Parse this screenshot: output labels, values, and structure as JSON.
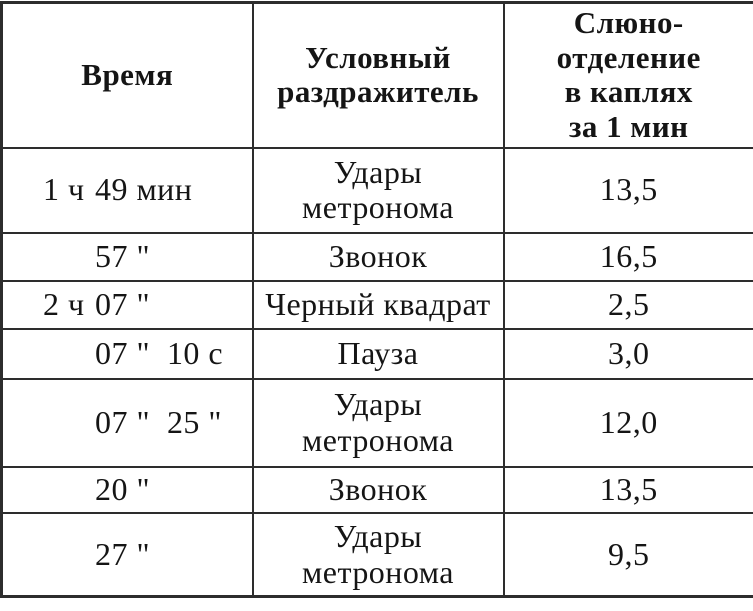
{
  "table": {
    "headers": [
      {
        "label": "Время"
      },
      {
        "label": "Условный\nраздражитель"
      },
      {
        "label": "Слюно-\nотделение\nв каплях\nза 1 мин"
      }
    ],
    "rows": [
      {
        "time_hour": "1 ч",
        "time_rest": "49 мин",
        "stimulus": "Удары\nметронома",
        "drops": "13,5"
      },
      {
        "time_hour": "",
        "time_rest": "57 \"",
        "stimulus": "Звонок",
        "drops": "16,5"
      },
      {
        "time_hour": "2 ч",
        "time_rest": "07 \"",
        "stimulus": "Черный квадрат",
        "drops": "2,5"
      },
      {
        "time_hour": "",
        "time_rest": "07 \"  10 с",
        "stimulus": "Пауза",
        "drops": "3,0"
      },
      {
        "time_hour": "",
        "time_rest": "07 \"  25 \"",
        "stimulus": "Удары\nметронома",
        "drops": "12,0"
      },
      {
        "time_hour": "",
        "time_rest": "20 \"",
        "stimulus": "Звонок",
        "drops": "13,5"
      },
      {
        "time_hour": "",
        "time_rest": "27 \"",
        "stimulus": "Удары\nметронома",
        "drops": "9,5"
      }
    ],
    "colors": {
      "border": "#2d2d2d",
      "text": "#151515",
      "background": "#ffffff"
    }
  }
}
